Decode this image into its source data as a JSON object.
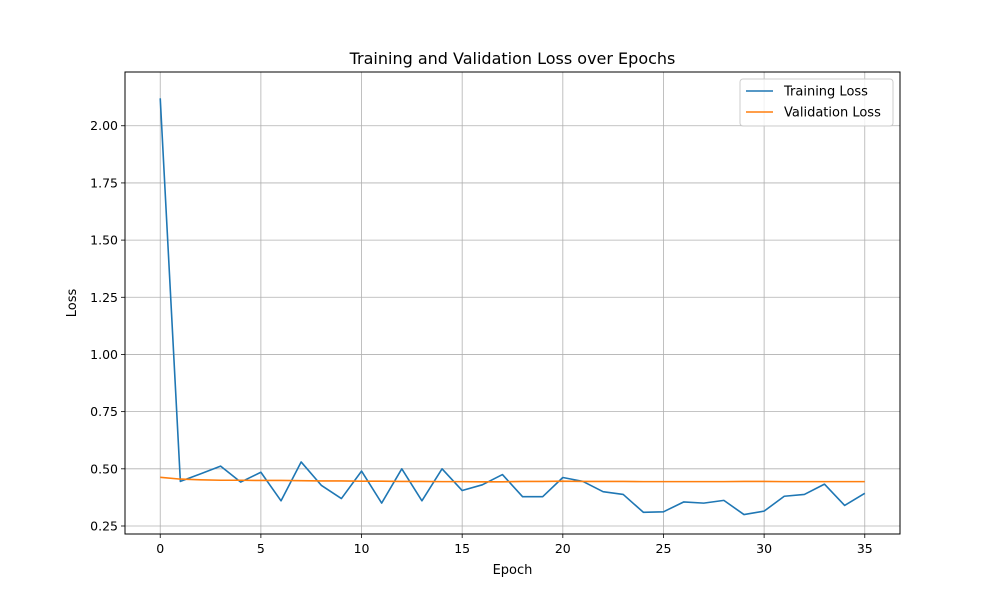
{
  "chart_data": {
    "type": "line",
    "title": "Training and Validation Loss over Epochs",
    "xlabel": "Epoch",
    "ylabel": "Loss",
    "xlim": [
      -1.75,
      36.75
    ],
    "ylim": [
      0.215,
      2.235
    ],
    "x_ticks": [
      0,
      5,
      10,
      15,
      20,
      25,
      30,
      35
    ],
    "y_ticks": [
      0.25,
      0.5,
      0.75,
      1.0,
      1.25,
      1.5,
      1.75,
      2.0
    ],
    "y_tick_labels": [
      "0.25",
      "0.50",
      "0.75",
      "1.00",
      "1.25",
      "1.50",
      "1.75",
      "2.00"
    ],
    "grid": true,
    "legend_position": "top-right",
    "x": [
      0,
      1,
      2,
      3,
      4,
      5,
      6,
      7,
      8,
      9,
      10,
      11,
      12,
      13,
      14,
      15,
      16,
      17,
      18,
      19,
      20,
      21,
      22,
      23,
      24,
      25,
      26,
      27,
      28,
      29,
      30,
      31,
      32,
      33,
      34,
      35
    ],
    "series": [
      {
        "name": "Training Loss",
        "color": "#1f77b4",
        "values": [
          2.12,
          0.445,
          0.478,
          0.512,
          0.442,
          0.485,
          0.36,
          0.53,
          0.428,
          0.37,
          0.49,
          0.35,
          0.5,
          0.36,
          0.5,
          0.405,
          0.43,
          0.475,
          0.378,
          0.378,
          0.462,
          0.445,
          0.4,
          0.388,
          0.31,
          0.312,
          0.355,
          0.35,
          0.362,
          0.3,
          0.315,
          0.38,
          0.388,
          0.433,
          0.34,
          0.393
        ]
      },
      {
        "name": "Validation Loss",
        "color": "#ff7f0e",
        "values": [
          0.463,
          0.455,
          0.452,
          0.45,
          0.45,
          0.449,
          0.449,
          0.448,
          0.447,
          0.447,
          0.446,
          0.446,
          0.445,
          0.445,
          0.444,
          0.444,
          0.443,
          0.443,
          0.445,
          0.445,
          0.446,
          0.445,
          0.445,
          0.445,
          0.444,
          0.444,
          0.444,
          0.444,
          0.444,
          0.445,
          0.445,
          0.444,
          0.444,
          0.444,
          0.444,
          0.444
        ]
      }
    ]
  }
}
